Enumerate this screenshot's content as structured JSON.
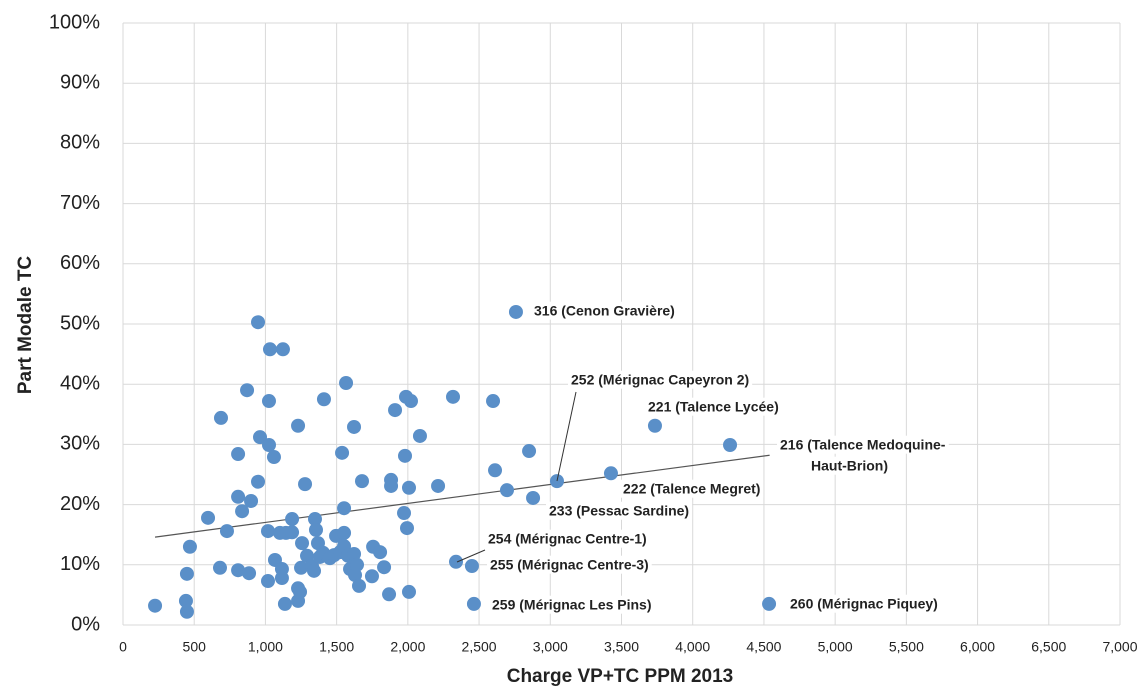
{
  "chart_data": {
    "type": "scatter",
    "xlabel": "Charge VP+TC PPM 2013",
    "ylabel": "Part Modale TC",
    "color": "#5a8fc8",
    "grid": true,
    "xlim": [
      0,
      7000
    ],
    "ylim": [
      0,
      100
    ],
    "xticks": [
      0,
      500,
      {
        "value": 1000,
        "label": "1,000"
      },
      {
        "value": 1500,
        "label": "1,500"
      },
      {
        "value": 2000,
        "label": "2,000"
      },
      {
        "value": 2500,
        "label": "2,500"
      },
      {
        "value": 3000,
        "label": "3,000"
      },
      {
        "value": 3500,
        "label": "3,500"
      },
      {
        "value": 4000,
        "label": "4,000"
      },
      {
        "value": 4500,
        "label": "4,500"
      },
      {
        "value": 5000,
        "label": "5,000"
      },
      {
        "value": 5500,
        "label": "5,500"
      },
      {
        "value": 6000,
        "label": "6,000"
      },
      {
        "value": 6500,
        "label": "6,500"
      },
      {
        "value": 7000,
        "label": "7,000"
      }
    ],
    "yticks": [
      {
        "value": 0,
        "label": "0%"
      },
      {
        "value": 10,
        "label": "10%"
      },
      {
        "value": 20,
        "label": "20%"
      },
      {
        "value": 30,
        "label": "30%"
      },
      {
        "value": 40,
        "label": "40%"
      },
      {
        "value": 50,
        "label": "50%"
      },
      {
        "value": 60,
        "label": "60%"
      },
      {
        "value": 70,
        "label": "70%"
      },
      {
        "value": 80,
        "label": "80%"
      },
      {
        "value": 90,
        "label": "90%"
      },
      {
        "value": 100,
        "label": "100%"
      }
    ],
    "x": [
      225,
      442,
      449,
      449,
      470,
      597,
      681,
      688,
      730,
      808,
      808,
      808,
      836,
      871,
      885,
      899,
      948,
      948,
      962,
      1018,
      1018,
      1025,
      1025,
      1032,
      1060,
      1067,
      1102,
      1116,
      1116,
      1123,
      1137,
      1144,
      1187,
      1187,
      1229,
      1229,
      1229,
      1243,
      1250,
      1257,
      1278,
      1292,
      1327,
      1341,
      1348,
      1355,
      1369,
      1383,
      1404,
      1411,
      1453,
      1482,
      1496,
      1524,
      1538,
      1552,
      1552,
      1552,
      1566,
      1580,
      1594,
      1622,
      1622,
      1629,
      1643,
      1657,
      1678,
      1748,
      1756,
      1805,
      1833,
      1868,
      1882,
      1882,
      1910,
      1973,
      1980,
      1987,
      1994,
      2008,
      2008,
      2022,
      2085,
      2212,
      2317,
      2338,
      2450,
      2464,
      2598,
      2612,
      2696,
      2759,
      2851,
      2879,
      3047,
      3426,
      3735,
      4262,
      4536
    ],
    "values": [
      3.2,
      4.0,
      2.2,
      8.5,
      13.0,
      17.8,
      9.5,
      34.4,
      15.6,
      28.4,
      21.3,
      9.1,
      18.9,
      39.0,
      8.6,
      20.6,
      50.3,
      23.8,
      31.2,
      15.6,
      7.3,
      29.9,
      37.2,
      45.8,
      27.9,
      10.8,
      15.3,
      9.3,
      7.8,
      45.8,
      3.5,
      15.3,
      17.6,
      15.4,
      33.1,
      6.1,
      4.0,
      5.5,
      9.5,
      13.6,
      23.4,
      11.5,
      9.8,
      9.0,
      17.6,
      15.8,
      13.6,
      11.3,
      12.0,
      37.5,
      11.1,
      11.6,
      14.8,
      12.1,
      28.6,
      15.3,
      19.4,
      13.1,
      40.2,
      11.5,
      9.3,
      32.9,
      11.8,
      8.3,
      10.0,
      6.5,
      23.9,
      8.1,
      13.0,
      12.1,
      9.6,
      5.1,
      24.1,
      23.1,
      35.7,
      18.6,
      28.1,
      37.9,
      16.1,
      22.8,
      5.5,
      37.2,
      31.4,
      23.1,
      37.9,
      10.5,
      9.8,
      3.5,
      37.2,
      25.7,
      22.4,
      52.0,
      28.9,
      21.1,
      23.9,
      25.2,
      33.1,
      29.9,
      3.5
    ],
    "trendline": {
      "x": [
        225,
        4540
      ],
      "values": [
        14.6,
        28.2
      ]
    },
    "annotations": [
      "316 (Cenon Gravière)",
      "252 (Mérignac Capeyron 2)",
      "221 (Talence Lycée)",
      "216 (Talence Medoquine-",
      "Haut-Brion)",
      "222 (Talence Megret)",
      "233 (Pessac Sardine)",
      "254 (Mérignac Centre-1)",
      "255 (Mérignac Centre-3)",
      "259 (Mérignac Les Pins)",
      "260 (Mérignac Piquey)"
    ]
  }
}
